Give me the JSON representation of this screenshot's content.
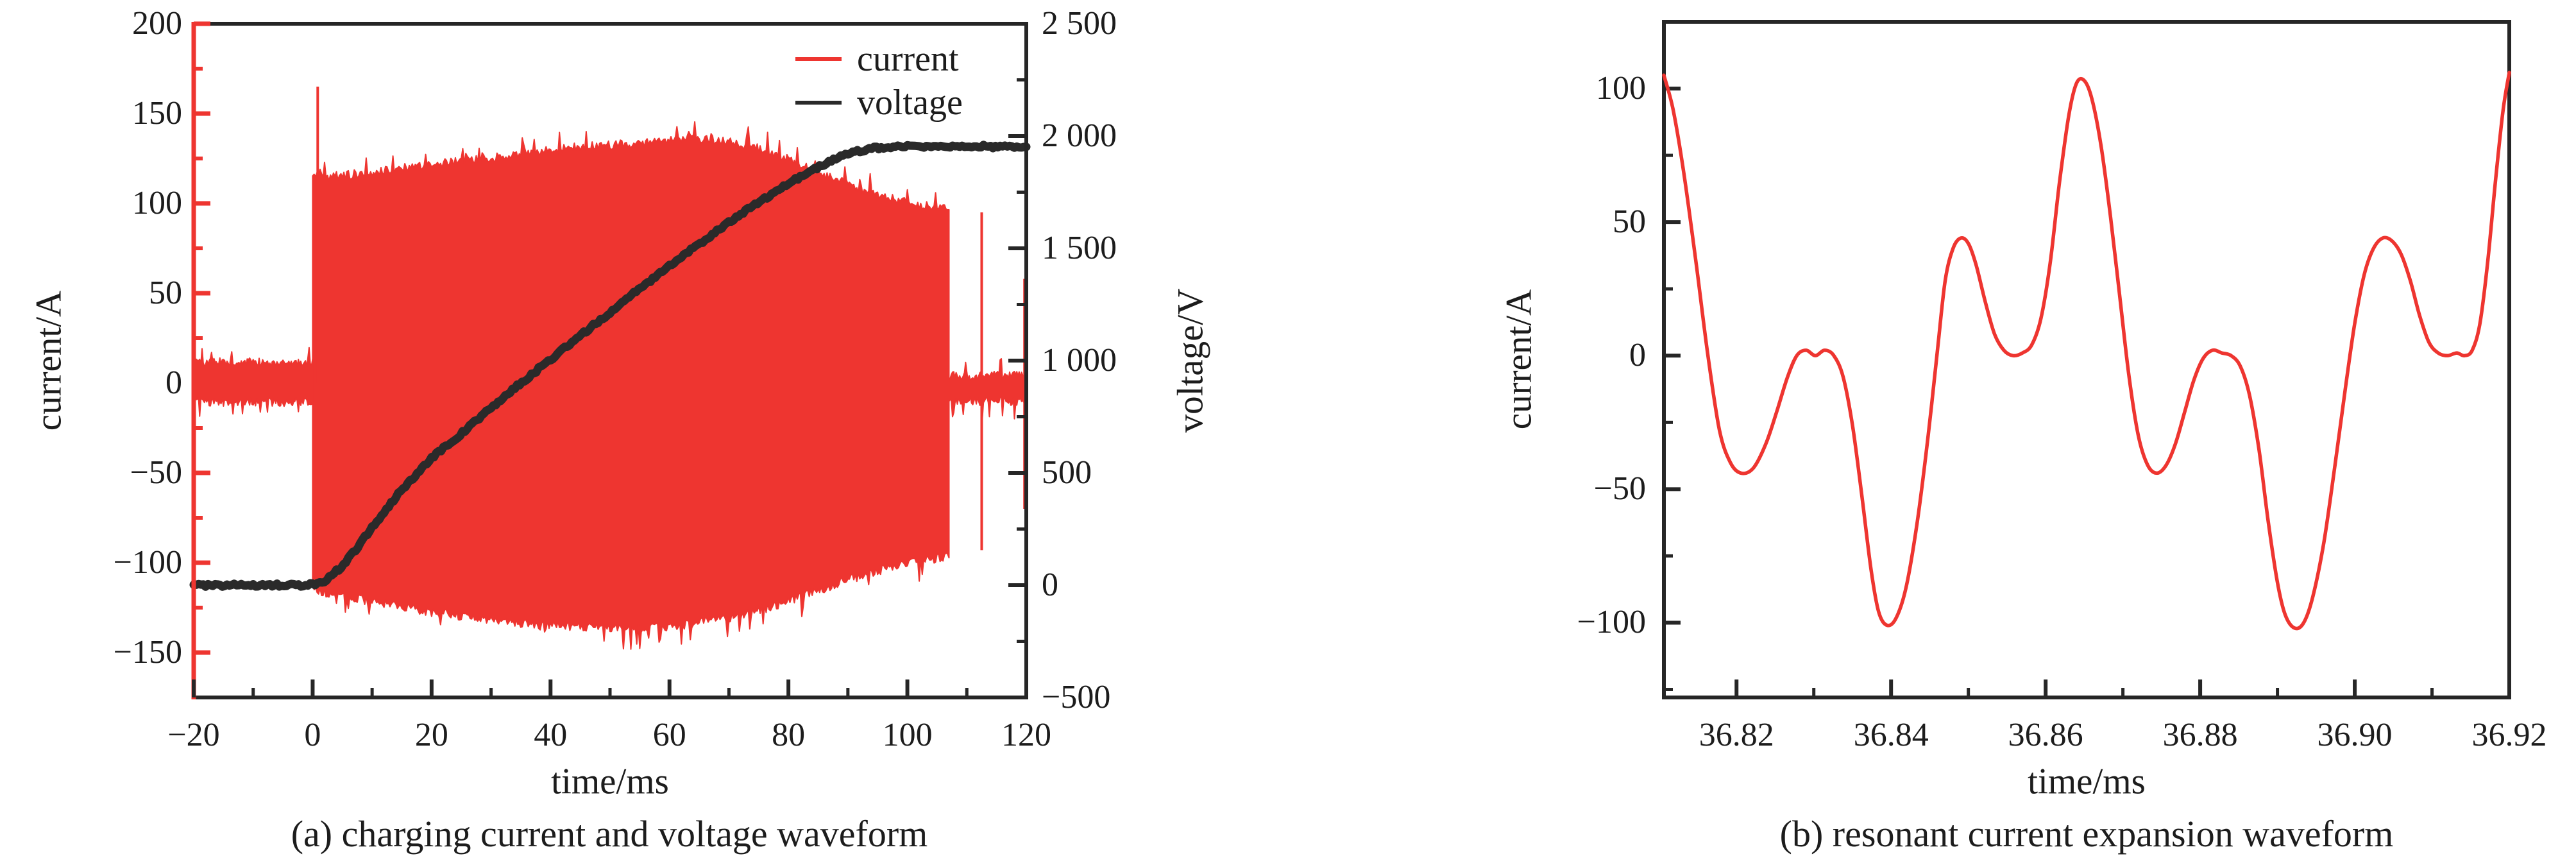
{
  "colors": {
    "current": "#ee3530",
    "voltage": "#2a2a2a",
    "axis": "#262626",
    "text": "#1c1c1c"
  },
  "panel_a": {
    "caption": "(a) charging current and voltage waveform",
    "x_label": "time/ms",
    "y_left_label": "current/A",
    "y_right_label": "voltage/V",
    "legend": [
      {
        "name": "current",
        "color_key": "current"
      },
      {
        "name": "voltage",
        "color_key": "voltage"
      }
    ],
    "x_tick_labels": [
      "−20",
      "0",
      "20",
      "40",
      "60",
      "80",
      "100",
      "120"
    ],
    "y_left_tick_labels": [
      "200",
      "150",
      "100",
      "50",
      "0",
      "−50",
      "−100",
      "−150"
    ],
    "y_right_tick_labels": [
      "2 500",
      "2 000",
      "1 500",
      "1 000",
      "500",
      "0",
      "−500"
    ]
  },
  "panel_b": {
    "caption": "(b) resonant current expansion waveform",
    "x_label": "time/ms",
    "y_label": "current/A",
    "x_tick_labels": [
      "36.82",
      "36.84",
      "36.86",
      "36.88",
      "36.90",
      "36.92"
    ],
    "y_tick_labels": [
      "100",
      "50",
      "0",
      "−50",
      "−100"
    ]
  },
  "chart_data": [
    {
      "type": "area",
      "title": "(a) charging current and voltage waveform",
      "xlabel": "time/ms",
      "ylabel": "current/A",
      "ylabel2": "voltage/V",
      "xlim": [
        -20,
        120
      ],
      "ylim_current": [
        -175,
        200
      ],
      "ylim_voltage": [
        -500,
        2500
      ],
      "x_ticks_major": [
        -20,
        0,
        20,
        40,
        60,
        80,
        100,
        120
      ],
      "x_ticks_minor": [
        -10,
        10,
        30,
        50,
        70,
        90,
        110
      ],
      "y_left_ticks_major": [
        200,
        150,
        100,
        50,
        0,
        -50,
        -100,
        -150
      ],
      "y_left_ticks_minor": [
        175,
        125,
        75,
        25,
        -25,
        -75,
        -125
      ],
      "y_right_ticks_major": [
        2500,
        2000,
        1500,
        1000,
        500,
        0,
        -500
      ],
      "y_right_ticks_minor": [
        2250,
        1750,
        1250,
        750,
        250,
        -250
      ],
      "grid": false,
      "legend_position": "top-right-inside",
      "current_band": {
        "t": [
          0,
          1,
          2,
          5,
          10,
          15,
          20,
          25,
          30,
          35,
          40,
          45,
          50,
          55,
          60,
          63,
          66,
          70,
          75,
          80,
          85,
          90,
          95,
          100,
          103,
          107
        ],
        "top": [
          113,
          116,
          113,
          114,
          116,
          118,
          120,
          122,
          124,
          126,
          128,
          130,
          131,
          132,
          134,
          135,
          134,
          133,
          129,
          123,
          116,
          109,
          103,
          99,
          97,
          96
        ],
        "bottom": [
          -112,
          -114,
          -115,
          -117,
          -120,
          -123,
          -126,
          -128,
          -130,
          -132,
          -133,
          -134,
          -135,
          -135,
          -134,
          -133,
          -131,
          -129,
          -125,
          -120,
          -114,
          -108,
          -103,
          -99,
          -97,
          -95
        ]
      },
      "current_noise_pre": {
        "t_start": -20,
        "t_end": 0,
        "center": 0.5,
        "half_width": 11,
        "jag": 5
      },
      "current_noise_post": {
        "t_start": 107,
        "t_end": 120,
        "center": -3,
        "half_width": 7,
        "jag": 5
      },
      "current_spikes": [
        {
          "t": 0.85,
          "from": 0,
          "to": 165
        },
        {
          "t": 112.5,
          "from": -93,
          "to": 95
        },
        {
          "t": 119.7,
          "from": -70,
          "to": 58
        }
      ],
      "voltage_series": {
        "t": [
          -20,
          -15,
          -10,
          -5,
          -2,
          0,
          2,
          5,
          8,
          10,
          15,
          20,
          25,
          30,
          35,
          40,
          45,
          50,
          55,
          60,
          65,
          70,
          75,
          80,
          85,
          88,
          91,
          94,
          97,
          100,
          104,
          108,
          112,
          116,
          120
        ],
        "v": [
          0,
          0,
          0,
          0,
          0,
          4,
          18,
          85,
          185,
          258,
          425,
          565,
          675,
          790,
          900,
          1005,
          1110,
          1215,
          1320,
          1420,
          1520,
          1615,
          1705,
          1790,
          1862,
          1900,
          1928,
          1945,
          1952,
          1953,
          1951,
          1953,
          1955,
          1951,
          1952
        ]
      },
      "voltage_plateau": 1950
    },
    {
      "type": "line",
      "title": "(b) resonant current expansion waveform",
      "xlabel": "time/ms",
      "ylabel": "current/A",
      "xlim": [
        36.8106,
        36.92
      ],
      "ylim": [
        -128,
        125
      ],
      "x_ticks_major": [
        36.82,
        36.84,
        36.86,
        36.88,
        36.9,
        36.92
      ],
      "x_ticks_minor": [
        36.83,
        36.85,
        36.87,
        36.89,
        36.91
      ],
      "y_ticks_major": [
        100,
        50,
        0,
        -50,
        -100
      ],
      "y_ticks_minor": [
        75,
        25,
        -25,
        -75,
        -125
      ],
      "grid": false,
      "points": [
        [
          36.8106,
          105
        ],
        [
          36.8118,
          92
        ],
        [
          36.8132,
          68
        ],
        [
          36.8148,
          34
        ],
        [
          36.8163,
          0
        ],
        [
          36.8178,
          -28
        ],
        [
          36.8192,
          -40
        ],
        [
          36.8206,
          -44
        ],
        [
          36.8222,
          -42
        ],
        [
          36.8238,
          -33
        ],
        [
          36.8252,
          -21
        ],
        [
          36.8266,
          -8
        ],
        [
          36.8278,
          0
        ],
        [
          36.829,
          2
        ],
        [
          36.8302,
          0
        ],
        [
          36.8314,
          2
        ],
        [
          36.8326,
          0
        ],
        [
          36.8338,
          -8
        ],
        [
          36.835,
          -26
        ],
        [
          36.8362,
          -52
        ],
        [
          36.8374,
          -80
        ],
        [
          36.8384,
          -96
        ],
        [
          36.8395,
          -101
        ],
        [
          36.8407,
          -98
        ],
        [
          36.842,
          -86
        ],
        [
          36.8434,
          -62
        ],
        [
          36.8448,
          -30
        ],
        [
          36.846,
          2
        ],
        [
          36.847,
          28
        ],
        [
          36.848,
          40
        ],
        [
          36.849,
          44
        ],
        [
          36.85,
          42
        ],
        [
          36.851,
          34
        ],
        [
          36.8522,
          20
        ],
        [
          36.8534,
          8
        ],
        [
          36.8546,
          2
        ],
        [
          36.8558,
          0
        ],
        [
          36.857,
          1
        ],
        [
          36.8582,
          4
        ],
        [
          36.8594,
          14
        ],
        [
          36.8606,
          35
        ],
        [
          36.8618,
          65
        ],
        [
          36.863,
          90
        ],
        [
          36.864,
          102
        ],
        [
          36.865,
          103
        ],
        [
          36.866,
          96
        ],
        [
          36.8672,
          78
        ],
        [
          36.8684,
          52
        ],
        [
          36.8696,
          22
        ],
        [
          36.8708,
          -8
        ],
        [
          36.872,
          -30
        ],
        [
          36.8732,
          -41
        ],
        [
          36.8744,
          -44
        ],
        [
          36.8756,
          -41
        ],
        [
          36.8768,
          -33
        ],
        [
          36.878,
          -21
        ],
        [
          36.8792,
          -9
        ],
        [
          36.8804,
          -1
        ],
        [
          36.8816,
          2
        ],
        [
          36.8828,
          1
        ],
        [
          36.884,
          0
        ],
        [
          36.8852,
          -4
        ],
        [
          36.8864,
          -15
        ],
        [
          36.8876,
          -35
        ],
        [
          36.8888,
          -62
        ],
        [
          36.89,
          -85
        ],
        [
          36.891,
          -97
        ],
        [
          36.8922,
          -102
        ],
        [
          36.8934,
          -100
        ],
        [
          36.8946,
          -90
        ],
        [
          36.896,
          -70
        ],
        [
          36.8974,
          -42
        ],
        [
          36.8988,
          -12
        ],
        [
          36.9,
          12
        ],
        [
          36.9012,
          30
        ],
        [
          36.9024,
          40
        ],
        [
          36.9036,
          44
        ],
        [
          36.9048,
          43
        ],
        [
          36.906,
          38
        ],
        [
          36.9072,
          28
        ],
        [
          36.9084,
          15
        ],
        [
          36.9096,
          5
        ],
        [
          36.9108,
          1
        ],
        [
          36.912,
          0
        ],
        [
          36.9132,
          1
        ],
        [
          36.9142,
          0
        ],
        [
          36.9152,
          2
        ],
        [
          36.9162,
          12
        ],
        [
          36.9172,
          35
        ],
        [
          36.9182,
          65
        ],
        [
          36.9192,
          92
        ],
        [
          36.92,
          106
        ]
      ]
    }
  ]
}
